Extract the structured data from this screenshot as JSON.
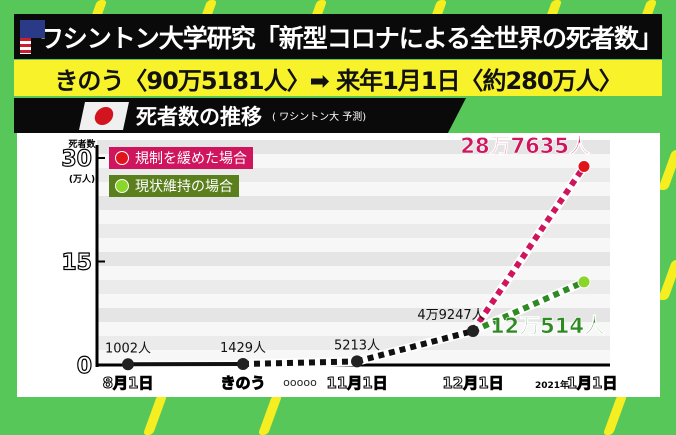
{
  "title_bar": {
    "title": "ワシントン大学研究「新型コロナによる全世界の死者数」",
    "flag_icon": "us-flag-icon"
  },
  "headline": {
    "text": "きのう〈90万5181人〉➡ 来年1月1日〈約280万人〉"
  },
  "subtitle_bar": {
    "title": "死者数の推移",
    "note": "( ワシントン大 予測)",
    "flag_icon": "japan-flag-icon"
  },
  "colors": {
    "background": "#58c75a",
    "stripe": "#f5ee20",
    "red_series": "#d0155f",
    "green_series": "#2f8a23",
    "headline_bg": "#f7f22a"
  },
  "chart_data": {
    "type": "line",
    "ylabel_top": "死者数",
    "yunit": "(万人)",
    "ylim": [
      0,
      30
    ],
    "yticks": [
      {
        "value": 0,
        "label": "0"
      },
      {
        "value": 15,
        "label": "15"
      },
      {
        "value": 30,
        "label": "30"
      }
    ],
    "categories": [
      "8月1日",
      "きのう",
      "11月1日",
      "12月1日",
      "2021年1月1日"
    ],
    "category_labels": [
      {
        "prefix": "",
        "label": "8月1日"
      },
      {
        "prefix": "",
        "label": "きのう"
      },
      {
        "prefix": "",
        "label": "11月1日"
      },
      {
        "prefix": "",
        "label": "12月1日"
      },
      {
        "prefix": "2021年",
        "label": "1月1日"
      }
    ],
    "gap_marker": "ooooo",
    "base_series": {
      "values": [
        0.1002,
        0.1429,
        0.5213,
        4.9247
      ],
      "labels": [
        "1002人",
        "1429人",
        "5213人",
        "4万9247人"
      ]
    },
    "series": [
      {
        "name": "規制を緩めた場合",
        "color": "#d0155f",
        "point_color": "#e0151c",
        "values": [
          null,
          null,
          null,
          4.9247,
          28.7635
        ],
        "end_label": "28万7635人"
      },
      {
        "name": "現状維持の場合",
        "color": "#2f8a23",
        "point_color": "#8ad62a",
        "values": [
          null,
          null,
          null,
          4.9247,
          12.0514
        ],
        "end_label": "12万514人"
      }
    ],
    "legend_placement": "top-left",
    "grid": true
  }
}
